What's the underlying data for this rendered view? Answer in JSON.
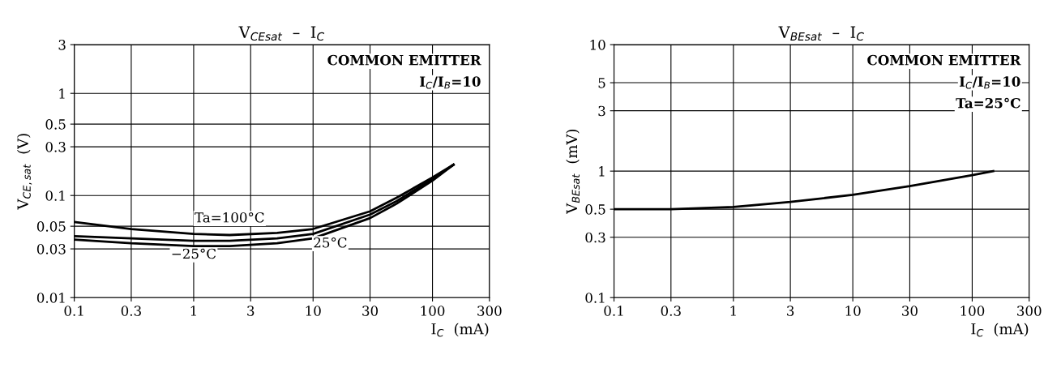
{
  "chart_data": [
    {
      "type": "line",
      "title": "V$_{CEsat}$  –  I$_{C}$",
      "xlabel": "I$_{C}$  (mA)",
      "ylabel": "V$_{CE,sat}$  (V)",
      "log": "xy",
      "grid": true,
      "legend": false,
      "annotations": [
        "COMMON EMITTER",
        "I$_{C}$/I$_{B}$=10"
      ],
      "x": [
        0.1,
        0.3,
        1,
        2,
        5,
        10,
        30,
        50,
        100,
        150
      ],
      "series": [
        {
          "name": "Ta=100°C",
          "color": "#000000",
          "values": [
            0.055,
            0.047,
            0.042,
            0.041,
            0.043,
            0.047,
            0.07,
            0.095,
            0.15,
            0.2
          ]
        },
        {
          "name": "25°C",
          "color": "#000000",
          "values": [
            0.04,
            0.038,
            0.036,
            0.036,
            0.038,
            0.042,
            0.065,
            0.088,
            0.145,
            0.2
          ]
        },
        {
          "name": "−25°C",
          "color": "#000000",
          "values": [
            0.037,
            0.034,
            0.032,
            0.032,
            0.034,
            0.038,
            0.06,
            0.083,
            0.14,
            0.2
          ]
        }
      ],
      "xlim": [
        0.1,
        300
      ],
      "xticks": [
        0.1,
        0.3,
        1,
        3,
        10,
        30,
        100,
        300
      ],
      "ylim": [
        0.01,
        3
      ],
      "yticks": [
        0.01,
        0.03,
        0.05,
        0.1,
        0.3,
        0.5,
        1,
        3
      ]
    },
    {
      "type": "line",
      "title": "V$_{BEsat}$  –  I$_{C}$",
      "xlabel": "I$_{C}$  (mA)",
      "ylabel": "V$_{BEsat}$  (mV)",
      "log": "xy",
      "grid": true,
      "legend": false,
      "annotations": [
        "COMMON EMITTER",
        "I$_{C}$/I$_{B}$=10",
        "Ta=25°C"
      ],
      "x": [
        0.1,
        0.3,
        1,
        3,
        10,
        30,
        100,
        150
      ],
      "series": [
        {
          "color": "#000000",
          "values": [
            0.5,
            0.5,
            0.52,
            0.57,
            0.65,
            0.76,
            0.93,
            1.0
          ]
        }
      ],
      "xlim": [
        0.1,
        300
      ],
      "xticks": [
        0.1,
        0.3,
        1,
        3,
        10,
        30,
        100,
        300
      ],
      "ylim": [
        0.1,
        10
      ],
      "yticks": [
        0.1,
        0.3,
        0.5,
        1,
        3,
        5,
        10
      ]
    }
  ]
}
